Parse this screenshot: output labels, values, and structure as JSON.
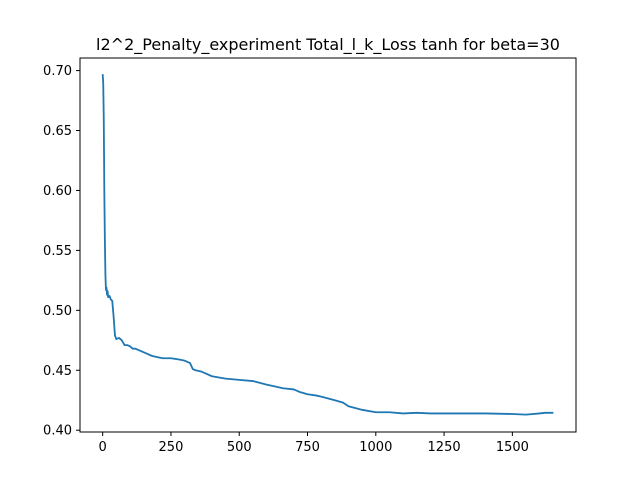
{
  "chart_data": {
    "type": "line",
    "title": "l2^2_Penalty_experiment Total_l_k_Loss tanh for beta=30",
    "xlabel": "",
    "ylabel": "",
    "xlim": [
      -83,
      1733
    ],
    "ylim": [
      0.3985,
      0.7105
    ],
    "xticks": [
      0,
      250,
      500,
      750,
      1000,
      1250,
      1500
    ],
    "xtick_labels": [
      "0",
      "250",
      "500",
      "750",
      "1000",
      "1250",
      "1500"
    ],
    "yticks": [
      0.4,
      0.45,
      0.5,
      0.55,
      0.6,
      0.65,
      0.7
    ],
    "ytick_labels": [
      "0.40",
      "0.45",
      "0.50",
      "0.55",
      "0.60",
      "0.65",
      "0.70"
    ],
    "grid": false,
    "legend": "none",
    "series": [
      {
        "name": "",
        "color": "#1f77b4",
        "x": [
          0,
          2,
          4,
          6,
          8,
          10,
          12,
          14,
          16,
          18,
          20,
          25,
          30,
          35,
          40,
          45,
          50,
          60,
          70,
          80,
          90,
          100,
          110,
          120,
          140,
          160,
          180,
          200,
          220,
          250,
          280,
          300,
          320,
          330,
          340,
          360,
          380,
          400,
          450,
          500,
          550,
          600,
          640,
          660,
          700,
          720,
          750,
          780,
          800,
          850,
          880,
          900,
          950,
          1000,
          1050,
          1100,
          1150,
          1200,
          1300,
          1400,
          1500,
          1550,
          1600,
          1620,
          1650
        ],
        "y": [
          0.697,
          0.69,
          0.66,
          0.6,
          0.56,
          0.53,
          0.517,
          0.519,
          0.513,
          0.516,
          0.511,
          0.512,
          0.509,
          0.508,
          0.495,
          0.479,
          0.476,
          0.477,
          0.475,
          0.471,
          0.471,
          0.47,
          0.468,
          0.468,
          0.466,
          0.464,
          0.462,
          0.461,
          0.46,
          0.46,
          0.459,
          0.458,
          0.456,
          0.451,
          0.45,
          0.449,
          0.447,
          0.445,
          0.443,
          0.442,
          0.441,
          0.438,
          0.436,
          0.435,
          0.434,
          0.432,
          0.43,
          0.429,
          0.428,
          0.425,
          0.423,
          0.42,
          0.417,
          0.415,
          0.415,
          0.414,
          0.4145,
          0.414,
          0.414,
          0.414,
          0.4135,
          0.413,
          0.414,
          0.4145,
          0.4145
        ]
      }
    ]
  }
}
